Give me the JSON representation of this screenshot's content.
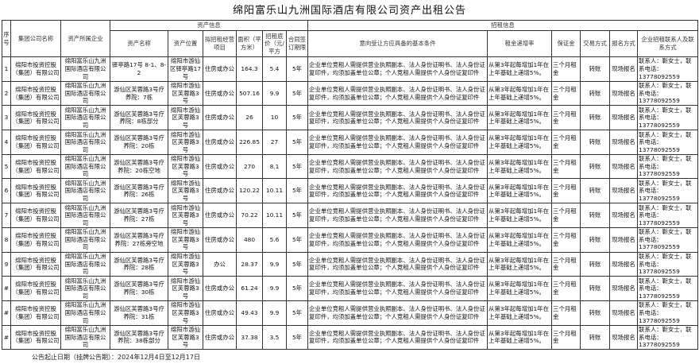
{
  "title": "绵阳富乐山九洲国际酒店有限公司资产出租公告",
  "headers": {
    "seq": "序号",
    "group": "集团公司名称",
    "company": "资产所属企业",
    "asset_info": "资产信息",
    "lease_info": "招租信息",
    "asset_name": "资产名称",
    "location": "资产位置",
    "purpose": "拟招租经营项目",
    "area": "面积（平方米）",
    "price": "招租底价（元/平方",
    "term": "合同签订期限",
    "conditions": "意向受让方应具备的基本条件",
    "growth": "租金递增率",
    "deposit": "保证金",
    "trade": "交易方式",
    "signup": "报名方式",
    "contact": "企业招租联系人及联系方式"
  },
  "rows": [
    {
      "seq": "1",
      "group": "绵阳市投资控股（集团）有限公司",
      "company": "绵阳富乐山九洲国际酒店有限公司",
      "name": "驿亭路17号 8-1、8-2",
      "location": "绵阳市游仙区驿亭路17号",
      "purpose": "住房或办公",
      "area": "164.3",
      "price": "5.4",
      "term": "5年",
      "conditions": "企业单位竞租人需提供营业执照副本、法人身份证明书、法人身份证复印件，均须加盖单位公章；个人竞租人需提供个人身份证复印件",
      "growth": "从第3年起每增加1年在上年基础上递增5%。",
      "deposit": "三个月租金",
      "trade": "转账",
      "signup": "现场报名",
      "contact": "联系人：靳女士，联系电话：13778092559"
    },
    {
      "seq": "2",
      "group": "绵阳市投资控股（集团）有限公司",
      "company": "绵阳富乐山九洲国际酒店有限公司",
      "name": "游仙区芙蓉路3号疗养院：7栋",
      "location": "绵阳市游仙区芙蓉路3号",
      "purpose": "住房或办公",
      "area": "507.16",
      "price": "9.9",
      "term": "5年",
      "conditions": "企业单位竞租人需提供营业执照副本、法人身份证明书、法人身份证复印件，均须加盖单位公章；个人竞租人需提供个人身份证复印件",
      "growth": "从第3年起每增加1年在上年基础上递增5%。",
      "deposit": "三个月租金",
      "trade": "转账",
      "signup": "现场报名",
      "contact": "联系人：靳女士，联系电话：13778092559"
    },
    {
      "seq": "3",
      "group": "绵阳市投资控股（集团）有限公司",
      "company": "绵阳富乐山九洲国际酒店有限公司",
      "name": "游仙区芙蓉路3号疗养院：8栋部分",
      "location": "绵阳市游仙区芙蓉路3号",
      "purpose": "住房或办公",
      "area": "26",
      "price": "10",
      "term": "5年",
      "conditions": "企业单位竞租人需提供营业执照副本、法人身份证明书、法人身份证复印件，均须加盖单位公章；个人竞租人需提供个人身份证复印件",
      "growth": "从第3年起每增加1年在上年基础上递增5%。",
      "deposit": "三个月租金",
      "trade": "转账",
      "signup": "现场报名",
      "contact": "联系人：靳女士，联系电话：13778092559"
    },
    {
      "seq": "4",
      "group": "绵阳市投资控股（集团）有限公司",
      "company": "绵阳富乐山九洲国际酒店有限公司",
      "name": "游仙区芙蓉路3号疗养院：20栋",
      "location": "绵阳市游仙区芙蓉路3号",
      "purpose": "住房或办公",
      "area": "226.85",
      "price": "27",
      "term": "5年",
      "conditions": "企业单位竞租人需提供营业执照副本、法人身份证明书、法人身份证复印件，均须加盖单位公章；个人竞租人需提供个人身份证复印件",
      "growth": "从第3年起每增加1年在上年基础上递增5%。",
      "deposit": "三个月租金",
      "trade": "转账",
      "signup": "现场报名",
      "contact": "联系人：靳女士，联系电话：13778092559"
    },
    {
      "seq": "5",
      "group": "绵阳市投资控股（集团）有限公司",
      "company": "绵阳富乐山九洲国际酒店有限公司",
      "name": "游仙区芙蓉路3号疗养院：20栋空地",
      "location": "绵阳市游仙区芙蓉路3号",
      "purpose": "住房或办公",
      "area": "270",
      "price": "8.1",
      "term": "5年",
      "conditions": "企业单位竞租人需提供营业执照副本、法人身份证明书、法人身份证复印件，均须加盖单位公章；个人竞租人需提供个人身份证复印件",
      "growth": "从第3年起每增加1年在上年基础上递增5%。",
      "deposit": "三个月租金",
      "trade": "转账",
      "signup": "现场报名",
      "contact": "联系人：靳女士，联系电话：13778092559"
    },
    {
      "seq": "6",
      "group": "绵阳市投资控股（集团）有限公司",
      "company": "绵阳富乐山九洲国际酒店有限公司",
      "name": "游仙区芙蓉路3号疗养院：26栋",
      "location": "绵阳市游仙区芙蓉路3号",
      "purpose": "住房或办公",
      "area": "120.22",
      "price": "10.11",
      "term": "5年",
      "conditions": "企业单位竞租人需提供营业执照副本、法人身份证明书、法人身份证复印件，均须加盖单位公章；个人竞租人需提供个人身份证复印件",
      "growth": "从第3年起每增加1年在上年基础上递增5%。",
      "deposit": "三个月租金",
      "trade": "转账",
      "signup": "现场报名",
      "contact": "联系人：靳女士，联系电话：13778092559"
    },
    {
      "seq": "7",
      "group": "绵阳市投资控股（集团）有限公司",
      "company": "绵阳富乐山九洲国际酒店有限公司",
      "name": "游仙区芙蓉路3号疗养院：27栋",
      "location": "绵阳市游仙区芙蓉路3号",
      "purpose": "住房或办公",
      "area": "70.22",
      "price": "10.11",
      "term": "5年",
      "conditions": "企业单位竞租人需提供营业执照副本、法人身份证明书、法人身份证复印件，均须加盖单位公章；个人竞租人需提供个人身份证复印件",
      "growth": "从第3年起每增加1年在上年基础上递增5%。",
      "deposit": "三个月租金",
      "trade": "转账",
      "signup": "现场报名",
      "contact": "联系人：靳女士，联系电话：13778092559"
    },
    {
      "seq": "8",
      "group": "绵阳市投资控股（集团）有限公司",
      "company": "绵阳富乐山九洲国际酒店有限公司",
      "name": "游仙区芙蓉路3号疗养院：27栋旁空地",
      "location": "绵阳市游仙区芙蓉路3号",
      "purpose": "住房或办公",
      "area": "480",
      "price": "5.6",
      "term": "5年",
      "conditions": "企业单位竞租人需提供营业执照副本、法人身份证明书、法人身份证复印件，均须加盖单位公章；个人竞租人需提供个人身份证复印件",
      "growth": "从第3年起每增加1年在上年基础上递增5%。",
      "deposit": "三个月租金",
      "trade": "转账",
      "signup": "现场报名",
      "contact": "联系人：靳女士，联系电话：13778092559"
    },
    {
      "seq": "9",
      "group": "绵阳市投资控股（集团）有限公司",
      "company": "绵阳富乐山九洲国际酒店有限公司",
      "name": "游仙区芙蓉路3号疗养院：28栋",
      "location": "绵阳市游仙区芙蓉路3号",
      "purpose": "办公",
      "area": "28.37",
      "price": "9.9",
      "term": "5年",
      "conditions": "企业单位竞租人需提供营业执照副本、法人身份证明书、法人身份证复印件，均须加盖单位公章；个人竞租人需提供个人身份证复印件",
      "growth": "从第3年起每增加1年在上年基础上递增5%。",
      "deposit": "三个月租金",
      "trade": "转账",
      "signup": "现场报名",
      "contact": "联系人：靳女士，联系电话：13778092559"
    },
    {
      "seq": "#",
      "group": "绵阳市投资控股（集团）有限公司",
      "company": "绵阳富乐山九洲国际酒店有限公司",
      "name": "游仙区芙蓉路3号疗养院：30栋",
      "location": "绵阳市游仙区芙蓉路3号",
      "purpose": "住房或办公",
      "area": "61.24",
      "price": "9.9",
      "term": "5年",
      "conditions": "企业单位竞租人需提供营业执照副本、法人身份证明书、法人身份证复印件，均须加盖单位公章；个人竞租人需提供个人身份证复印件",
      "growth": "从第3年起每增加1年在上年基础上递增5%。",
      "deposit": "三个月租金",
      "trade": "转账",
      "signup": "现场报名",
      "contact": "联系人：靳女士，联系电话：13778092559"
    },
    {
      "seq": "#",
      "group": "绵阳市投资控股（集团）有限公司",
      "company": "绵阳富乐山九洲国际酒店有限公司",
      "name": "游仙区芙蓉路3号疗养院：31栋",
      "location": "绵阳市游仙区芙蓉路3号",
      "purpose": "住房或办公",
      "area": "49.43",
      "price": "9.9",
      "term": "5年",
      "conditions": "企业单位竞租人需提供营业执照副本、法人身份证明书、法人身份证复印件，均须加盖单位公章；个人竞租人需提供个人身份证复印件",
      "growth": "从第3年起每增加1年在上年基础上递增5%。",
      "deposit": "三个月租金",
      "trade": "转账",
      "signup": "现场报名",
      "contact": "联系人：靳女士，联系电话：13778092559"
    },
    {
      "seq": "#",
      "group": "绵阳市投资控股（集团）有限公司",
      "company": "绵阳富乐山九洲国际酒店有限公司",
      "name": "游仙区芙蓉路3号疗养院：38栋部分",
      "location": "绵阳市游仙区芙蓉路3号",
      "purpose": "住房或办公",
      "area": "37.38",
      "price": "3.5",
      "term": "5年",
      "conditions": "企业单位竞租人需提供营业执照副本、法人身份证明书、法人身份证复印件，均须加盖单位公章；个人竞租人需提供个人身份证复印件",
      "growth": "从第3年起每增加1年在上年基础上递增5%。",
      "deposit": "三个月租金",
      "trade": "转账",
      "signup": "现场报名",
      "contact": "联系人：靳女士，联系电话：13778092559"
    }
  ],
  "footer": "公告起止日期（挂牌公告期）：2024年12月4日至12月17日"
}
